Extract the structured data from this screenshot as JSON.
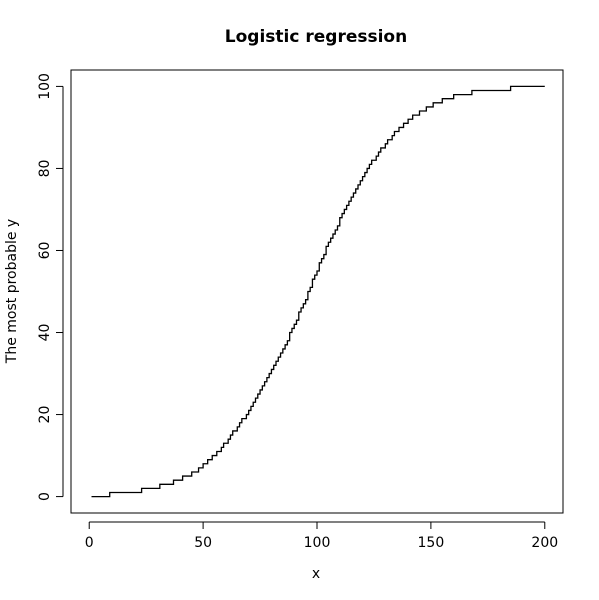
{
  "chart_data": {
    "type": "line",
    "title": "Logistic regression",
    "xlabel": "x",
    "ylabel": "The most probable y",
    "xlim": [
      -8,
      208
    ],
    "ylim": [
      -4,
      104
    ],
    "x_ticks": [
      0,
      50,
      100,
      150,
      200
    ],
    "y_ticks": [
      0,
      20,
      40,
      60,
      80,
      100
    ],
    "x_tick_labels": [
      "0",
      "50",
      "100",
      "150",
      "200"
    ],
    "y_tick_labels": [
      "0",
      "20",
      "40",
      "60",
      "80",
      "100"
    ],
    "grid": false,
    "series": [
      {
        "color": "#000000",
        "step": true,
        "x": [
          1,
          2,
          3,
          4,
          5,
          6,
          7,
          8,
          9,
          10,
          11,
          12,
          13,
          14,
          15,
          16,
          17,
          18,
          19,
          20,
          21,
          22,
          23,
          24,
          25,
          26,
          27,
          28,
          29,
          30,
          31,
          32,
          33,
          34,
          35,
          36,
          37,
          38,
          39,
          40,
          41,
          42,
          43,
          44,
          45,
          46,
          47,
          48,
          49,
          50,
          51,
          52,
          53,
          54,
          55,
          56,
          57,
          58,
          59,
          60,
          61,
          62,
          63,
          64,
          65,
          66,
          67,
          68,
          69,
          70,
          71,
          72,
          73,
          74,
          75,
          76,
          77,
          78,
          79,
          80,
          81,
          82,
          83,
          84,
          85,
          86,
          87,
          88,
          89,
          90,
          91,
          92,
          93,
          94,
          95,
          96,
          97,
          98,
          99,
          100,
          101,
          102,
          103,
          104,
          105,
          106,
          107,
          108,
          109,
          110,
          111,
          112,
          113,
          114,
          115,
          116,
          117,
          118,
          119,
          120,
          121,
          122,
          123,
          124,
          125,
          126,
          127,
          128,
          129,
          130,
          131,
          132,
          133,
          134,
          135,
          136,
          137,
          138,
          139,
          140,
          141,
          142,
          143,
          144,
          145,
          146,
          147,
          148,
          149,
          150,
          151,
          152,
          153,
          154,
          155,
          156,
          157,
          158,
          159,
          160,
          161,
          162,
          163,
          164,
          165,
          166,
          167,
          168,
          169,
          170,
          171,
          172,
          173,
          174,
          175,
          176,
          177,
          178,
          179,
          180,
          181,
          182,
          183,
          184,
          185,
          186,
          187,
          188,
          189,
          190,
          191,
          192,
          193,
          194,
          195,
          196,
          197,
          198,
          199,
          200
        ],
        "y": [
          0,
          0,
          0,
          0,
          0,
          0,
          0,
          0,
          1,
          1,
          1,
          1,
          1,
          1,
          1,
          1,
          1,
          1,
          1,
          1,
          1,
          1,
          2,
          2,
          2,
          2,
          2,
          2,
          2,
          2,
          3,
          3,
          3,
          3,
          3,
          3,
          4,
          4,
          4,
          4,
          5,
          5,
          5,
          5,
          6,
          6,
          6,
          7,
          7,
          8,
          8,
          9,
          9,
          10,
          10,
          11,
          11,
          12,
          13,
          13,
          14,
          15,
          16,
          16,
          17,
          18,
          19,
          19,
          20,
          21,
          22,
          23,
          24,
          25,
          26,
          27,
          28,
          29,
          30,
          31,
          32,
          33,
          34,
          35,
          36,
          37,
          38,
          40,
          41,
          42,
          43,
          45,
          46,
          47,
          48,
          50,
          51,
          53,
          54,
          55,
          57,
          58,
          59,
          61,
          62,
          63,
          64,
          65,
          66,
          68,
          69,
          70,
          71,
          72,
          73,
          74,
          75,
          76,
          77,
          78,
          79,
          80,
          81,
          82,
          82,
          83,
          84,
          85,
          85,
          86,
          87,
          87,
          88,
          89,
          89,
          90,
          90,
          91,
          91,
          92,
          92,
          93,
          93,
          93,
          94,
          94,
          94,
          95,
          95,
          95,
          96,
          96,
          96,
          96,
          97,
          97,
          97,
          97,
          97,
          98,
          98,
          98,
          98,
          98,
          98,
          98,
          98,
          99,
          99,
          99,
          99,
          99,
          99,
          99,
          99,
          99,
          99,
          99,
          99,
          99,
          99,
          99,
          99,
          99,
          100,
          100,
          100,
          100,
          100,
          100,
          100,
          100,
          100,
          100,
          100,
          100,
          100,
          100,
          100,
          100
        ]
      }
    ]
  }
}
